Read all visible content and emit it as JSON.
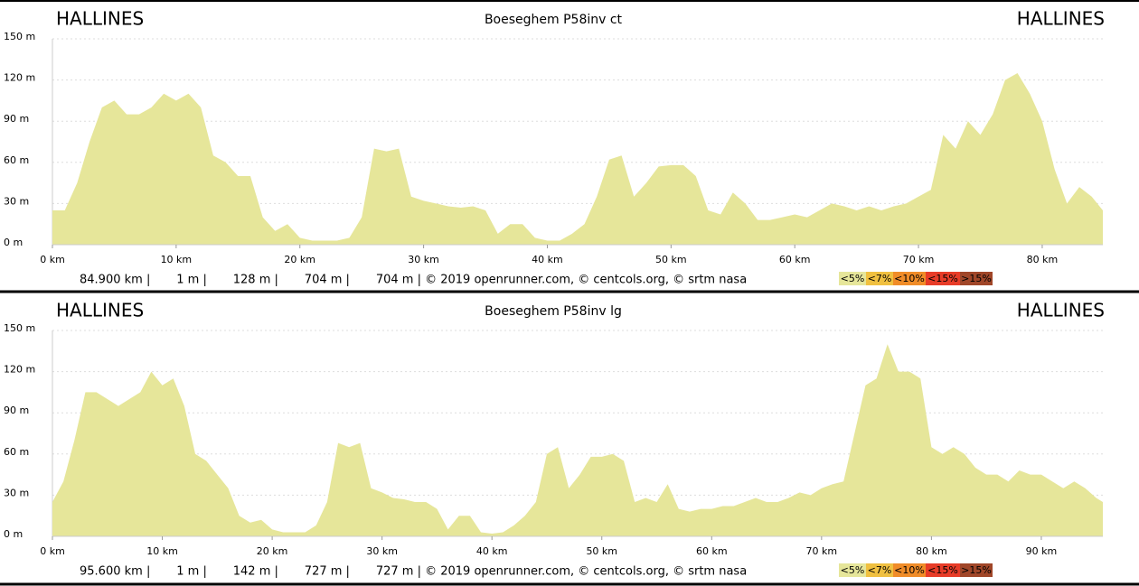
{
  "chart_data": [
    {
      "type": "area",
      "start_label": "HALLINES",
      "end_label": "HALLINES",
      "title": "Boeseghem P58inv ct",
      "footer": "84.900 km |       1 m |       128 m |       704 m |       704 m | © 2019 openrunner.com, © centcols.org, © srtm nasa",
      "color": "#e6e69a",
      "x": [
        0,
        1,
        2,
        3,
        4,
        5,
        6,
        7,
        8,
        9,
        10,
        11,
        12,
        13,
        14,
        15,
        16,
        17,
        18,
        19,
        20,
        21,
        22,
        23,
        24,
        25,
        26,
        27,
        28,
        29,
        30,
        31,
        32,
        33,
        34,
        35,
        36,
        37,
        38,
        39,
        40,
        41,
        42,
        43,
        44,
        45,
        46,
        47,
        48,
        49,
        50,
        51,
        52,
        53,
        54,
        55,
        56,
        57,
        58,
        59,
        60,
        61,
        62,
        63,
        64,
        65,
        66,
        67,
        68,
        69,
        70,
        71,
        72,
        73,
        74,
        75,
        76,
        77,
        78,
        79,
        80,
        81,
        82,
        83,
        84,
        84.9
      ],
      "values": [
        25,
        25,
        45,
        75,
        100,
        105,
        95,
        95,
        100,
        110,
        105,
        110,
        100,
        65,
        60,
        50,
        50,
        20,
        10,
        15,
        5,
        3,
        3,
        3,
        5,
        20,
        70,
        68,
        70,
        35,
        32,
        30,
        28,
        27,
        28,
        25,
        8,
        15,
        15,
        5,
        3,
        3,
        8,
        15,
        35,
        62,
        65,
        35,
        45,
        57,
        58,
        58,
        50,
        25,
        22,
        38,
        30,
        18,
        18,
        20,
        22,
        20,
        25,
        30,
        28,
        25,
        28,
        25,
        28,
        30,
        35,
        40,
        80,
        70,
        90,
        80,
        95,
        120,
        125,
        110,
        90,
        55,
        30,
        42,
        35,
        25
      ],
      "xlim": [
        0,
        84.9
      ],
      "ylim": [
        0,
        150
      ],
      "xticks": [
        {
          "value": 0,
          "label": "0 km"
        },
        {
          "value": 10,
          "label": "10 km"
        },
        {
          "value": 20,
          "label": "20 km"
        },
        {
          "value": 30,
          "label": "30 km"
        },
        {
          "value": 40,
          "label": "40 km"
        },
        {
          "value": 50,
          "label": "50 km"
        },
        {
          "value": 60,
          "label": "60 km"
        },
        {
          "value": 70,
          "label": "70 km"
        },
        {
          "value": 80,
          "label": "80 km"
        }
      ],
      "yticks": [
        {
          "value": 0,
          "label": "0 m"
        },
        {
          "value": 30,
          "label": "30 m"
        },
        {
          "value": 60,
          "label": "60 m"
        },
        {
          "value": 90,
          "label": "90 m"
        },
        {
          "value": 120,
          "label": "120 m"
        },
        {
          "value": 150,
          "label": "150 m"
        }
      ],
      "grid": true,
      "legend": [
        {
          "label": "<5%",
          "color": "#e6e69a"
        },
        {
          "label": "<7%",
          "color": "#f0c040"
        },
        {
          "label": "<10%",
          "color": "#f08c28"
        },
        {
          "label": "<15%",
          "color": "#e83c28"
        },
        {
          "label": ">15%",
          "color": "#a04628"
        }
      ]
    },
    {
      "type": "area",
      "start_label": "HALLINES",
      "end_label": "HALLINES",
      "title": "Boeseghem P58inv lg",
      "footer": "95.600 km |       1 m |       142 m |       727 m |       727 m | © 2019 openrunner.com, © centcols.org, © srtm nasa",
      "color": "#e6e69a",
      "x": [
        0,
        1,
        2,
        3,
        4,
        5,
        6,
        7,
        8,
        9,
        10,
        11,
        12,
        13,
        14,
        15,
        16,
        17,
        18,
        19,
        20,
        21,
        22,
        23,
        24,
        25,
        26,
        27,
        28,
        29,
        30,
        31,
        32,
        33,
        34,
        35,
        36,
        37,
        38,
        39,
        40,
        41,
        42,
        43,
        44,
        45,
        46,
        47,
        48,
        49,
        50,
        51,
        52,
        53,
        54,
        55,
        56,
        57,
        58,
        59,
        60,
        61,
        62,
        63,
        64,
        65,
        66,
        67,
        68,
        69,
        70,
        71,
        72,
        73,
        74,
        75,
        76,
        77,
        78,
        79,
        80,
        81,
        82,
        83,
        84,
        85,
        86,
        87,
        88,
        89,
        90,
        91,
        92,
        93,
        94,
        95,
        95.6
      ],
      "values": [
        25,
        40,
        70,
        105,
        105,
        100,
        95,
        100,
        105,
        120,
        110,
        115,
        95,
        60,
        55,
        45,
        35,
        15,
        10,
        12,
        5,
        3,
        3,
        3,
        8,
        25,
        68,
        65,
        68,
        35,
        32,
        28,
        27,
        25,
        25,
        20,
        5,
        15,
        15,
        3,
        2,
        3,
        8,
        15,
        25,
        60,
        65,
        35,
        45,
        58,
        58,
        60,
        55,
        25,
        28,
        25,
        38,
        20,
        18,
        20,
        20,
        22,
        22,
        25,
        28,
        25,
        25,
        28,
        32,
        30,
        35,
        38,
        40,
        75,
        110,
        115,
        140,
        120,
        120,
        115,
        65,
        60,
        65,
        60,
        50,
        45,
        45,
        40,
        48,
        45,
        45,
        40,
        35,
        40,
        35,
        28,
        25
      ],
      "xlim": [
        0,
        95.6
      ],
      "ylim": [
        0,
        150
      ],
      "xticks": [
        {
          "value": 0,
          "label": "0 km"
        },
        {
          "value": 10,
          "label": "10 km"
        },
        {
          "value": 20,
          "label": "20 km"
        },
        {
          "value": 30,
          "label": "30 km"
        },
        {
          "value": 40,
          "label": "40 km"
        },
        {
          "value": 50,
          "label": "50 km"
        },
        {
          "value": 60,
          "label": "60 km"
        },
        {
          "value": 70,
          "label": "70 km"
        },
        {
          "value": 80,
          "label": "80 km"
        },
        {
          "value": 90,
          "label": "90 km"
        }
      ],
      "yticks": [
        {
          "value": 0,
          "label": "0 m"
        },
        {
          "value": 30,
          "label": "30 m"
        },
        {
          "value": 60,
          "label": "60 m"
        },
        {
          "value": 90,
          "label": "90 m"
        },
        {
          "value": 120,
          "label": "120 m"
        },
        {
          "value": 150,
          "label": "150 m"
        }
      ],
      "grid": true,
      "legend": [
        {
          "label": "<5%",
          "color": "#e6e69a"
        },
        {
          "label": "<7%",
          "color": "#f0c040"
        },
        {
          "label": "<10%",
          "color": "#f08c28"
        },
        {
          "label": "<15%",
          "color": "#e83c28"
        },
        {
          "label": ">15%",
          "color": "#a04628"
        }
      ]
    }
  ]
}
